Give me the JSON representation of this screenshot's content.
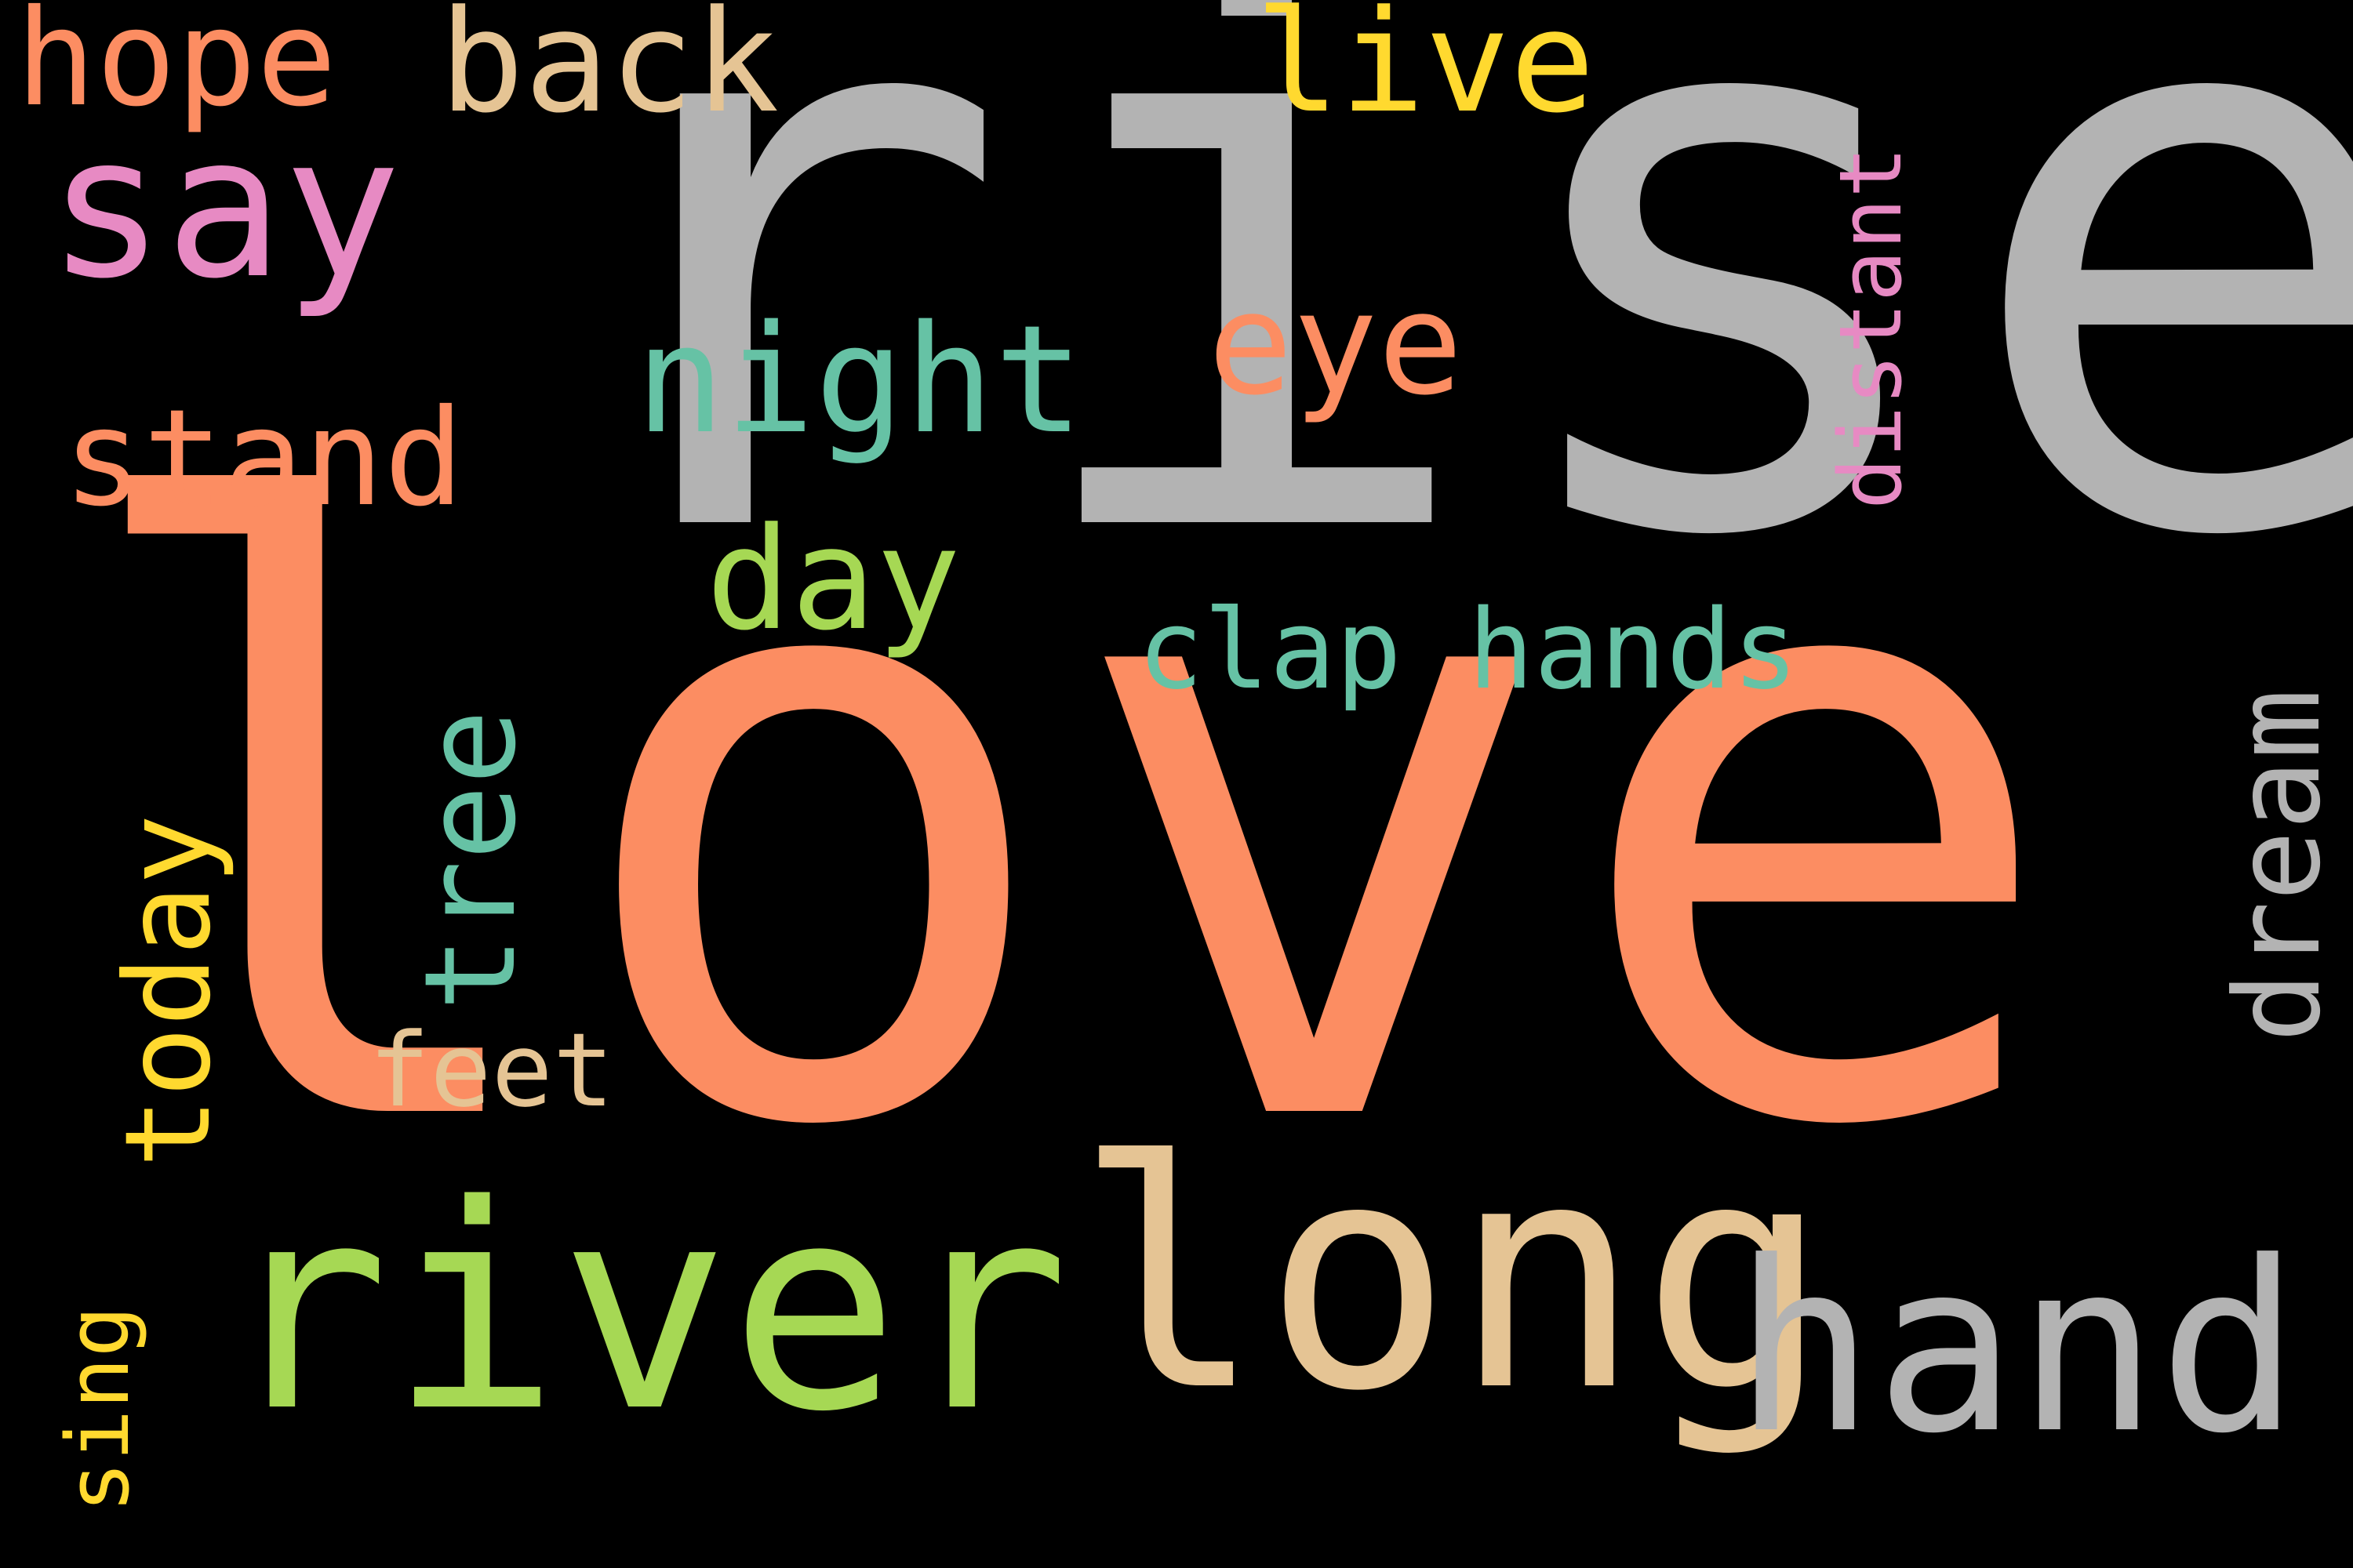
{
  "words": {
    "rise": "rise",
    "love": "love",
    "river": "river",
    "long": "long",
    "hand": "hand",
    "say": "say",
    "hope": "hope",
    "back": "back",
    "live": "live",
    "night": "night",
    "eye": "eye",
    "distant": "distant",
    "stand": "stand",
    "day": "day",
    "clap_hands": "clap hands",
    "tree": "tree",
    "dream": "dream",
    "today": "today",
    "feet": "feet",
    "sing": "sing"
  },
  "colors": {
    "background": "#000000",
    "gray": "#b3b3b3",
    "orange": "#fc8d62",
    "green": "#a6d854",
    "tan": "#e5c494",
    "teal": "#66c2a5",
    "pink": "#e78ac3",
    "yellow": "#ffd92f"
  }
}
